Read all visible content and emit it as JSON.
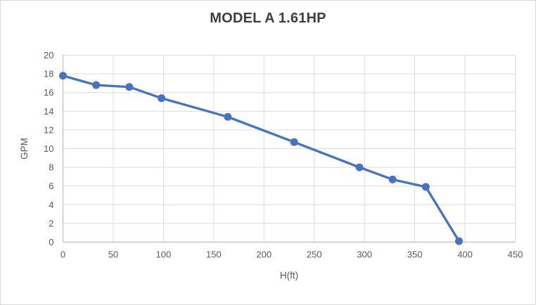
{
  "chart_data": {
    "type": "line",
    "title": "MODEL A 1.61HP",
    "xlabel": "H(ft)",
    "ylabel": "GPM",
    "xlim": [
      0,
      450
    ],
    "ylim": [
      0,
      20
    ],
    "x_ticks": [
      0,
      50,
      100,
      150,
      200,
      250,
      300,
      350,
      400,
      450
    ],
    "y_ticks": [
      0,
      2,
      4,
      6,
      8,
      10,
      12,
      14,
      16,
      18,
      20
    ],
    "grid": true,
    "legend_position": "none",
    "series": [
      {
        "name": "MODEL A 1.61HP",
        "color": "#4472C4",
        "marker": "circle",
        "points": [
          {
            "x": 0,
            "y": 17.8
          },
          {
            "x": 33,
            "y": 16.8
          },
          {
            "x": 66,
            "y": 16.6
          },
          {
            "x": 98,
            "y": 15.4
          },
          {
            "x": 164,
            "y": 13.4
          },
          {
            "x": 230,
            "y": 10.7
          },
          {
            "x": 295,
            "y": 8.0
          },
          {
            "x": 328,
            "y": 6.7
          },
          {
            "x": 361,
            "y": 5.9
          },
          {
            "x": 394,
            "y": 0.1
          }
        ]
      }
    ],
    "colors": {
      "title_text": "#3F3F3F",
      "axis_text": "#595959",
      "gridline": "#DCDCDC",
      "axis_line": "#C6C6C6",
      "series_line": "#4472C4",
      "background": "#FFFFFF",
      "border": "#D9D9D9"
    }
  }
}
